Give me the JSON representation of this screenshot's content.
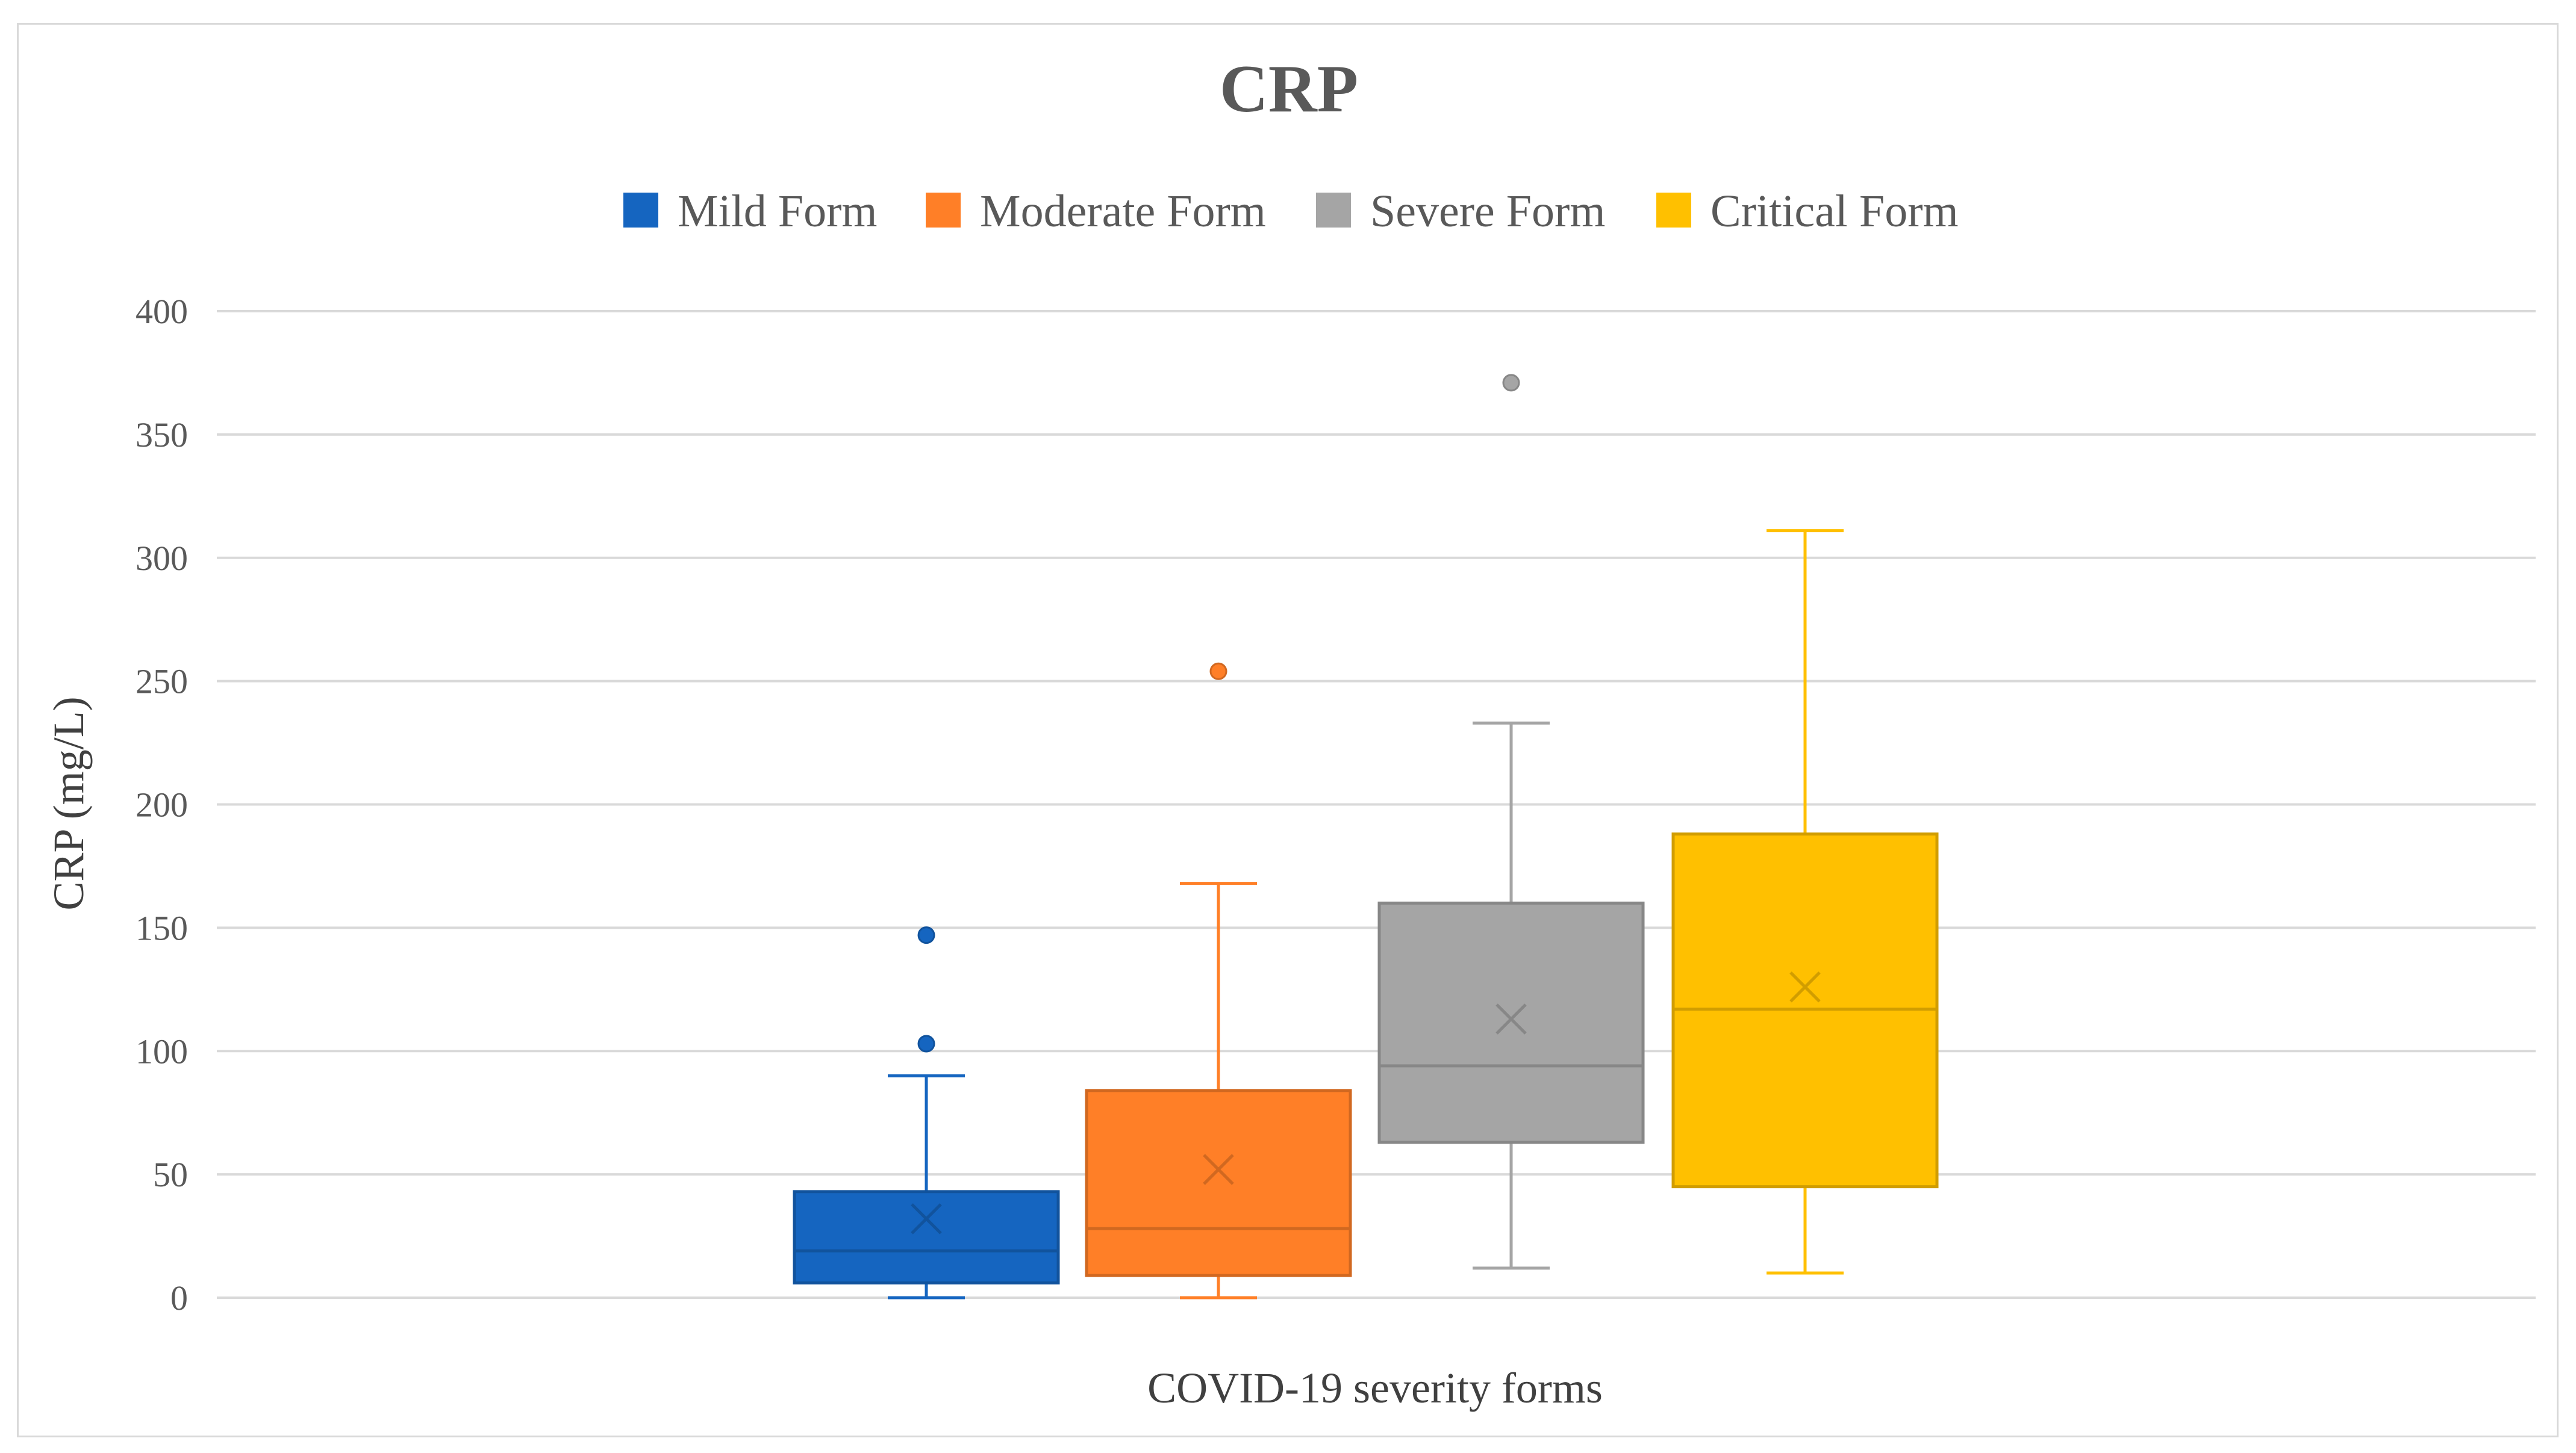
{
  "chart_data": {
    "type": "boxplot",
    "title": "CRP",
    "xlabel": "COVID-19 severity forms",
    "ylabel": "CRP (mg/L)",
    "ylim": [
      0,
      400
    ],
    "yticks": [
      0,
      50,
      100,
      150,
      200,
      250,
      300,
      350,
      400
    ],
    "grid": true,
    "legend_position": "top",
    "series": [
      {
        "name": "Mild Form",
        "color": "#1565C0",
        "min": 0,
        "q1": 6,
        "median": 19,
        "q3": 43,
        "max": 90,
        "mean": 32,
        "outliers": [
          103,
          147
        ]
      },
      {
        "name": "Moderate Form",
        "color": "#FF7F27",
        "min": 0,
        "q1": 9,
        "median": 28,
        "q3": 84,
        "max": 168,
        "mean": 52,
        "outliers": [
          254
        ]
      },
      {
        "name": "Severe Form",
        "color": "#A5A5A5",
        "min": 12,
        "q1": 63,
        "median": 94,
        "q3": 160,
        "max": 233,
        "mean": 113,
        "outliers": [
          371
        ]
      },
      {
        "name": "Critical Form",
        "color": "#FFC000",
        "min": 10,
        "q1": 45,
        "median": 117,
        "q3": 188,
        "max": 311,
        "mean": 126,
        "outliers": []
      }
    ]
  }
}
